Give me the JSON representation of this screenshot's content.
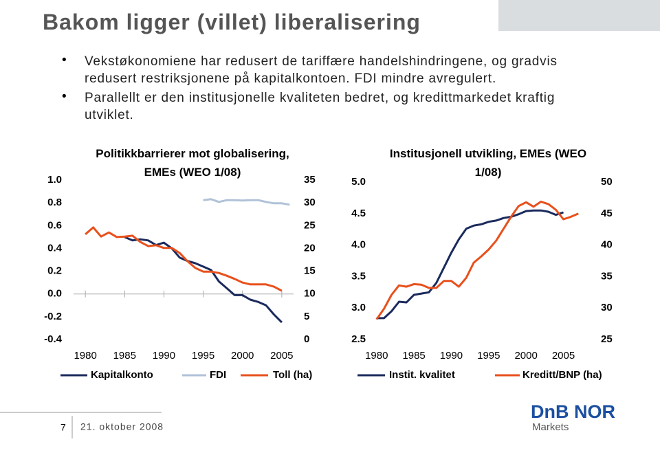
{
  "title": "Bakom ligger (villet) liberalisering",
  "bullets": [
    "Vekstøkonomiene har redusert de tariffære handelshindringene, og gradvis redusert restriksjonene på kapitalkontoen. FDI mindre avregulert.",
    "Parallellt er den institusjonelle kvaliteten bedret, og kredittmarkedet kraftig utviklet."
  ],
  "chart_data": [
    {
      "type": "line",
      "title": "Politikkbarrierer mot globalisering, EMEs (WEO 1/08)",
      "x": [
        1980,
        1981,
        1982,
        1983,
        1984,
        1985,
        1986,
        1987,
        1988,
        1989,
        1990,
        1991,
        1992,
        1993,
        1994,
        1995,
        1996,
        1997,
        1998,
        1999,
        2000,
        2001,
        2002,
        2003,
        2004,
        2005,
        2006
      ],
      "xlim": [
        1978.5,
        2006.5
      ],
      "xticks": [
        1980,
        1985,
        1990,
        1995,
        2000,
        2005
      ],
      "ylim": [
        -0.4,
        1.0
      ],
      "yticks": [
        {
          "value": -0.4,
          "label": "-0.4"
        },
        {
          "value": -0.2,
          "label": "-0.2"
        },
        {
          "value": 0,
          "label": "0.0"
        },
        {
          "value": 0.2,
          "label": "0.2"
        },
        {
          "value": 0.4,
          "label": "0.4"
        },
        {
          "value": 0.6,
          "label": "0.6"
        },
        {
          "value": 0.8,
          "label": "0.8"
        },
        {
          "value": 1.0,
          "label": "1.0"
        }
      ],
      "y2lim": [
        0,
        35
      ],
      "y2ticks": [
        0,
        5,
        10,
        15,
        20,
        25,
        30,
        35
      ],
      "series": [
        {
          "name": "Kapitalkonto",
          "color": "#1b2a5c",
          "values": [
            null,
            null,
            null,
            null,
            null,
            0.5,
            0.47,
            0.48,
            0.47,
            0.43,
            0.45,
            0.4,
            0.32,
            0.29,
            0.27,
            0.24,
            0.21,
            0.11,
            0.05,
            -0.01,
            -0.01,
            -0.05,
            -0.07,
            -0.1,
            -0.18,
            -0.25,
            null
          ]
        },
        {
          "name": "FDI",
          "color": "#b0c2d8",
          "axis": "y2",
          "values": [
            null,
            null,
            null,
            null,
            null,
            null,
            null,
            null,
            null,
            null,
            null,
            null,
            null,
            null,
            null,
            30.6,
            30.8,
            30.2,
            30.6,
            30.6,
            30.5,
            30.6,
            30.6,
            30.2,
            29.9,
            29.9,
            29.6
          ]
        },
        {
          "name": "Toll (ha)",
          "color": "#e8501c",
          "axis": "y2",
          "values": [
            23.1,
            24.6,
            22.6,
            23.5,
            22.5,
            22.6,
            22.8,
            21.4,
            20.5,
            20.7,
            20.1,
            20.1,
            19.0,
            17.2,
            15.7,
            14.9,
            14.9,
            14.6,
            14.0,
            13.3,
            12.5,
            12.1,
            12.1,
            12.1,
            11.6,
            10.7,
            null
          ]
        }
      ]
    },
    {
      "type": "line",
      "title": "Institusjonell utvikling, EMEs (WEO 1/08)",
      "x": [
        1980,
        1981,
        1982,
        1983,
        1984,
        1985,
        1986,
        1987,
        1988,
        1989,
        1990,
        1991,
        1992,
        1993,
        1994,
        1995,
        1996,
        1997,
        1998,
        1999,
        2000,
        2001,
        2002,
        2003,
        2004,
        2005,
        2006,
        2007
      ],
      "xlim": [
        1978,
        2009
      ],
      "xticks": [
        1980,
        1985,
        1990,
        1995,
        2000,
        2005
      ],
      "ylim": [
        2.5,
        5.0
      ],
      "yticks": [
        {
          "value": 2.5,
          "label": "2.5"
        },
        {
          "value": 3.0,
          "label": "3.0"
        },
        {
          "value": 3.5,
          "label": "3.5"
        },
        {
          "value": 4.0,
          "label": "4.0"
        },
        {
          "value": 4.5,
          "label": "4.5"
        },
        {
          "value": 5.0,
          "label": "5.0"
        }
      ],
      "y2lim": [
        25,
        50
      ],
      "y2ticks": [
        25,
        30,
        35,
        40,
        45,
        50
      ],
      "series": [
        {
          "name": "Instit. kvalitet",
          "color": "#1b2a5c",
          "values": [
            2.84,
            2.84,
            2.95,
            3.1,
            3.09,
            3.21,
            3.23,
            3.25,
            3.4,
            3.64,
            3.88,
            4.09,
            4.26,
            4.31,
            4.33,
            4.37,
            4.39,
            4.43,
            4.45,
            4.49,
            4.54,
            4.55,
            4.55,
            4.53,
            4.48,
            4.52,
            null,
            null
          ]
        },
        {
          "name": "Kreditt/BNP (ha)",
          "color": "#e8501c",
          "axis": "y2",
          "values": [
            28.2,
            29.9,
            32.1,
            33.6,
            33.4,
            33.8,
            33.7,
            33.2,
            33.2,
            34.3,
            34.3,
            33.4,
            34.8,
            37.2,
            38.2,
            39.3,
            40.7,
            42.6,
            44.5,
            46.2,
            46.8,
            46.1,
            46.9,
            46.5,
            45.6,
            44.1,
            44.5,
            45.0
          ]
        }
      ]
    }
  ],
  "footer": {
    "page": "7",
    "date": "21. oktober 2008"
  },
  "logo": {
    "name": "DnB NOR",
    "sub": "Markets"
  }
}
